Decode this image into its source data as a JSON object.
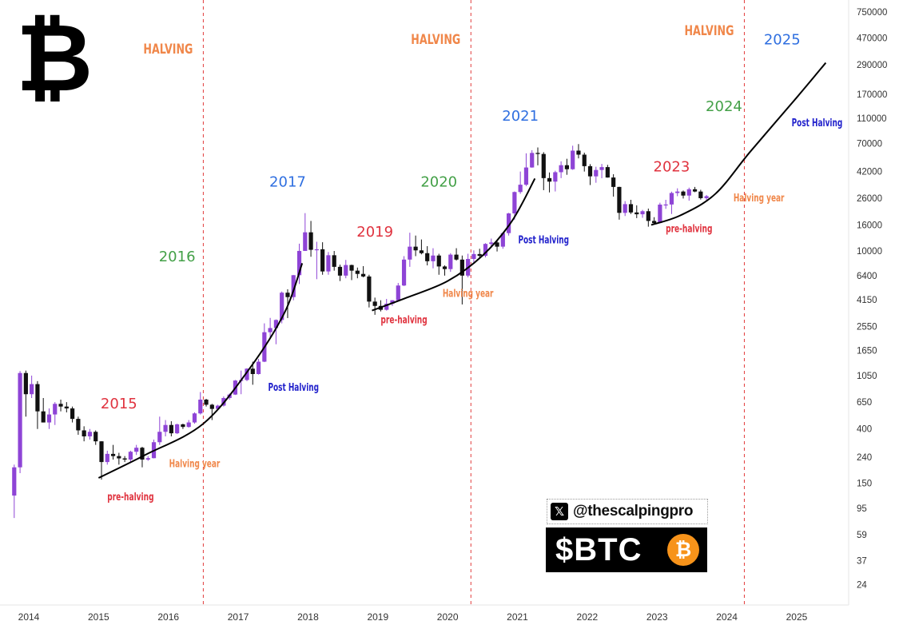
{
  "logo": {
    "icon": "bitcoin-logo",
    "glyph": "₿"
  },
  "colors": {
    "bull": "#8e44d6",
    "bear": "#111111",
    "halving_line": "#e23b3b",
    "halving_label": "#f0874a",
    "year_blue": "#2f6fe0",
    "year_green": "#43a047",
    "year_red": "#e0333f",
    "post_halving": "#2222cc",
    "pre_halving": "#e0333f",
    "halving_year": "#f0874a",
    "btc_orange": "#f7931a"
  },
  "handle": {
    "icon": "x-logo-icon",
    "glyph": "𝕏",
    "text": "@thescalpingpro"
  },
  "ticker": {
    "text": "$BTC",
    "coin_glyph": "₿"
  },
  "chart_data": {
    "type": "candlestick",
    "title": "",
    "xlabel": "",
    "ylabel": "",
    "y_scale": "log",
    "ylim": [
      18,
      1000000
    ],
    "xlim": [
      "2013-10",
      "2025-10"
    ],
    "grid": false,
    "x_ticks": [
      "2014",
      "2015",
      "2016",
      "2017",
      "2018",
      "2019",
      "2020",
      "2021",
      "2022",
      "2023",
      "2024",
      "2025"
    ],
    "y_ticks": [
      750000,
      470000,
      290000,
      170000,
      110000,
      70000,
      42000,
      26000,
      16000,
      10000,
      6400,
      4150,
      2550,
      1650,
      1050,
      650,
      400,
      240,
      150,
      95,
      59,
      37,
      24
    ],
    "halving_dates": [
      "2016-07",
      "2020-05",
      "2024-04"
    ],
    "halving_labels": [
      "HALVING",
      "HALVING",
      "HALVING"
    ],
    "year_labels": [
      {
        "text": "2015",
        "x": "2015-04",
        "y": 580,
        "color": "year_red"
      },
      {
        "text": "2016",
        "x": "2016-02",
        "y": 8300,
        "color": "year_green"
      },
      {
        "text": "2017",
        "x": "2017-09",
        "y": 32000,
        "color": "year_blue"
      },
      {
        "text": "2019",
        "x": "2018-12",
        "y": 13000,
        "color": "year_red"
      },
      {
        "text": "2020",
        "x": "2019-11",
        "y": 32000,
        "color": "year_green"
      },
      {
        "text": "2021",
        "x": "2021-01",
        "y": 105000,
        "color": "year_blue"
      },
      {
        "text": "2023",
        "x": "2023-03",
        "y": 42000,
        "color": "year_red"
      },
      {
        "text": "2024",
        "x": "2023-12",
        "y": 125000,
        "color": "year_green"
      },
      {
        "text": "2025",
        "x": "2024-10",
        "y": 420000,
        "color": "year_blue"
      }
    ],
    "phase_labels": [
      {
        "text": "pre-halving",
        "x": "2015-06",
        "y": 110,
        "color": "pre_halving"
      },
      {
        "text": "Halving year",
        "x": "2016-05",
        "y": 200,
        "color": "halving_year"
      },
      {
        "text": "Post Halving",
        "x": "2017-10",
        "y": 800,
        "color": "post_halving"
      },
      {
        "text": "pre-halving",
        "x": "2019-05",
        "y": 2700,
        "color": "pre_halving"
      },
      {
        "text": "Halving year",
        "x": "2020-04",
        "y": 4350,
        "color": "halving_year"
      },
      {
        "text": "Post Halving",
        "x": "2021-05",
        "y": 11500,
        "color": "post_halving"
      },
      {
        "text": "pre-halving",
        "x": "2023-06",
        "y": 14000,
        "color": "pre_halving"
      },
      {
        "text": "Halving year",
        "x": "2024-06",
        "y": 24500,
        "color": "halving_year"
      },
      {
        "text": "Post Halving",
        "x": "2025-04",
        "y": 95000,
        "color": "post_halving"
      }
    ],
    "trend_curves": [
      {
        "points": [
          [
            "2015-01",
            165
          ],
          [
            "2015-09",
            250
          ],
          [
            "2016-07",
            440
          ],
          [
            "2017-03",
            1200
          ],
          [
            "2017-09",
            3300
          ],
          [
            "2017-12",
            8000
          ]
        ]
      },
      {
        "points": [
          [
            "2018-12",
            3400
          ],
          [
            "2019-06",
            4300
          ],
          [
            "2020-01",
            5800
          ],
          [
            "2020-07",
            9200
          ],
          [
            "2020-12",
            17000
          ],
          [
            "2021-04",
            37000
          ]
        ]
      },
      {
        "points": [
          [
            "2022-12",
            16000
          ],
          [
            "2023-05",
            19000
          ],
          [
            "2023-11",
            28000
          ],
          [
            "2024-05",
            60000
          ],
          [
            "2025-01",
            160000
          ],
          [
            "2025-06",
            300000
          ]
        ]
      }
    ],
    "series": [
      {
        "ohlc": [
          [
            "2013-10",
            120,
            210,
            80,
            200
          ],
          [
            "2013-11",
            200,
            1140,
            180,
            1100
          ],
          [
            "2013-12",
            1100,
            1150,
            500,
            750
          ],
          [
            "2014-01",
            750,
            1050,
            700,
            900
          ],
          [
            "2014-02",
            900,
            950,
            400,
            550
          ],
          [
            "2014-03",
            550,
            700,
            450,
            450
          ],
          [
            "2014-04",
            450,
            580,
            400,
            520
          ],
          [
            "2014-05",
            520,
            650,
            430,
            630
          ],
          [
            "2014-06",
            630,
            680,
            550,
            600
          ],
          [
            "2014-07",
            600,
            650,
            540,
            580
          ],
          [
            "2014-08",
            580,
            600,
            450,
            480
          ],
          [
            "2014-09",
            480,
            500,
            360,
            390
          ],
          [
            "2014-10",
            390,
            420,
            320,
            350
          ],
          [
            "2014-11",
            350,
            400,
            330,
            380
          ],
          [
            "2014-12",
            380,
            390,
            300,
            320
          ],
          [
            "2015-01",
            320,
            320,
            160,
            220
          ],
          [
            "2015-02",
            220,
            270,
            210,
            255
          ],
          [
            "2015-03",
            255,
            300,
            230,
            245
          ],
          [
            "2015-04",
            245,
            260,
            210,
            235
          ],
          [
            "2015-05",
            235,
            245,
            220,
            230
          ],
          [
            "2015-06",
            230,
            270,
            220,
            265
          ],
          [
            "2015-07",
            265,
            300,
            250,
            285
          ],
          [
            "2015-08",
            285,
            290,
            200,
            230
          ],
          [
            "2015-09",
            230,
            245,
            225,
            236
          ],
          [
            "2015-10",
            236,
            330,
            235,
            315
          ],
          [
            "2015-11",
            315,
            500,
            300,
            380
          ],
          [
            "2015-12",
            380,
            470,
            350,
            430
          ],
          [
            "2016-01",
            430,
            460,
            350,
            370
          ],
          [
            "2016-02",
            370,
            440,
            365,
            435
          ],
          [
            "2016-03",
            435,
            440,
            400,
            415
          ],
          [
            "2016-04",
            415,
            470,
            410,
            450
          ],
          [
            "2016-05",
            450,
            540,
            440,
            530
          ],
          [
            "2016-06",
            530,
            780,
            520,
            680
          ],
          [
            "2016-07",
            680,
            690,
            600,
            620
          ],
          [
            "2016-08",
            620,
            630,
            470,
            575
          ],
          [
            "2016-09",
            575,
            620,
            570,
            610
          ],
          [
            "2016-10",
            610,
            720,
            600,
            700
          ],
          [
            "2016-11",
            700,
            760,
            680,
            745
          ],
          [
            "2016-12",
            745,
            970,
            740,
            960
          ],
          [
            "2017-01",
            960,
            1150,
            750,
            970
          ],
          [
            "2017-02",
            970,
            1200,
            950,
            1190
          ],
          [
            "2017-03",
            1190,
            1350,
            890,
            1080
          ],
          [
            "2017-04",
            1080,
            1420,
            1070,
            1350
          ],
          [
            "2017-05",
            1350,
            2700,
            1340,
            2300
          ],
          [
            "2017-06",
            2300,
            2980,
            2100,
            2480
          ],
          [
            "2017-07",
            2480,
            2900,
            1850,
            2870
          ],
          [
            "2017-08",
            2870,
            4800,
            2700,
            4700
          ],
          [
            "2017-09",
            4700,
            5000,
            2970,
            4340
          ],
          [
            "2017-10",
            4340,
            6470,
            4100,
            6450
          ],
          [
            "2017-11",
            6450,
            11400,
            5500,
            10000
          ],
          [
            "2017-12",
            10000,
            19800,
            10000,
            14000
          ],
          [
            "2018-01",
            14000,
            17200,
            9000,
            10200
          ],
          [
            "2018-02",
            10200,
            11800,
            6000,
            10300
          ],
          [
            "2018-03",
            10300,
            11700,
            6500,
            6900
          ],
          [
            "2018-04",
            6900,
            9800,
            6500,
            9250
          ],
          [
            "2018-05",
            9250,
            9990,
            7000,
            7500
          ],
          [
            "2018-06",
            7500,
            7800,
            5800,
            6400
          ],
          [
            "2018-07",
            6400,
            8500,
            6100,
            7750
          ],
          [
            "2018-08",
            7750,
            7800,
            5900,
            7000
          ],
          [
            "2018-09",
            7000,
            7400,
            6100,
            6600
          ],
          [
            "2018-10",
            6600,
            7600,
            6200,
            6300
          ],
          [
            "2018-11",
            6300,
            6500,
            3600,
            4000
          ],
          [
            "2018-12",
            4000,
            4300,
            3150,
            3700
          ],
          [
            "2019-01",
            3700,
            4100,
            3350,
            3450
          ],
          [
            "2019-02",
            3450,
            4200,
            3400,
            3850
          ],
          [
            "2019-03",
            3850,
            4100,
            3700,
            4100
          ],
          [
            "2019-04",
            4100,
            5600,
            4070,
            5350
          ],
          [
            "2019-05",
            5350,
            9100,
            5300,
            8550
          ],
          [
            "2019-06",
            8550,
            13900,
            7500,
            10800
          ],
          [
            "2019-07",
            10800,
            13200,
            9100,
            10100
          ],
          [
            "2019-08",
            10100,
            12300,
            9400,
            9600
          ],
          [
            "2019-09",
            9600,
            10900,
            7700,
            8300
          ],
          [
            "2019-10",
            8300,
            10500,
            7300,
            9200
          ],
          [
            "2019-11",
            9200,
            9500,
            6500,
            7550
          ],
          [
            "2019-12",
            7550,
            7700,
            6400,
            7200
          ],
          [
            "2020-01",
            7200,
            9600,
            6850,
            9350
          ],
          [
            "2020-02",
            9350,
            10500,
            8400,
            8550
          ],
          [
            "2020-03",
            8550,
            9200,
            3800,
            6400
          ],
          [
            "2020-04",
            6400,
            9500,
            6200,
            8650
          ],
          [
            "2020-05",
            8650,
            10100,
            8100,
            9450
          ],
          [
            "2020-06",
            9450,
            10400,
            8900,
            9150
          ],
          [
            "2020-07",
            9150,
            11500,
            8900,
            11350
          ],
          [
            "2020-08",
            11350,
            12500,
            10600,
            11650
          ],
          [
            "2020-09",
            11650,
            12100,
            9900,
            10800
          ],
          [
            "2020-10",
            10800,
            14100,
            10400,
            13800
          ],
          [
            "2020-11",
            13800,
            19900,
            13200,
            19700
          ],
          [
            "2020-12",
            19700,
            29300,
            17600,
            29000
          ],
          [
            "2021-01",
            29000,
            42000,
            28100,
            33100
          ],
          [
            "2021-02",
            33100,
            58400,
            32300,
            45200
          ],
          [
            "2021-03",
            45200,
            61800,
            45000,
            58800
          ],
          [
            "2021-04",
            58800,
            64900,
            47000,
            57700
          ],
          [
            "2021-05",
            57700,
            59600,
            30000,
            37300
          ],
          [
            "2021-06",
            37300,
            41300,
            28800,
            35000
          ],
          [
            "2021-07",
            35000,
            42600,
            29300,
            41500
          ],
          [
            "2021-08",
            41500,
            50500,
            37300,
            47100
          ],
          [
            "2021-09",
            47100,
            52900,
            39600,
            43800
          ],
          [
            "2021-10",
            43800,
            67000,
            43300,
            61300
          ],
          [
            "2021-11",
            61300,
            69000,
            53300,
            57000
          ],
          [
            "2021-12",
            57000,
            59100,
            42000,
            46300
          ],
          [
            "2022-01",
            46300,
            48000,
            32900,
            38500
          ],
          [
            "2022-02",
            38500,
            45800,
            34300,
            43200
          ],
          [
            "2022-03",
            43200,
            48200,
            37200,
            45500
          ],
          [
            "2022-04",
            45500,
            47400,
            37600,
            37700
          ],
          [
            "2022-05",
            37700,
            40000,
            26700,
            31800
          ],
          [
            "2022-06",
            31800,
            31900,
            17600,
            19900
          ],
          [
            "2022-07",
            19900,
            24600,
            18800,
            23300
          ],
          [
            "2022-08",
            23300,
            25200,
            19500,
            20050
          ],
          [
            "2022-09",
            20050,
            22800,
            18100,
            19400
          ],
          [
            "2022-10",
            19400,
            21000,
            18200,
            20500
          ],
          [
            "2022-11",
            20500,
            21500,
            15500,
            17200
          ],
          [
            "2022-12",
            17200,
            18400,
            16300,
            16550
          ],
          [
            "2023-01",
            16550,
            23900,
            16500,
            23100
          ],
          [
            "2023-02",
            23100,
            25200,
            21400,
            23150
          ],
          [
            "2023-03",
            23150,
            29200,
            19500,
            28500
          ],
          [
            "2023-04",
            28500,
            31000,
            26900,
            29250
          ],
          [
            "2023-05",
            29250,
            29800,
            25800,
            27200
          ],
          [
            "2023-06",
            27200,
            31400,
            24800,
            30500
          ],
          [
            "2023-07",
            30500,
            31800,
            28900,
            29250
          ],
          [
            "2023-08",
            29250,
            30200,
            25300,
            25950
          ],
          [
            "2023-09",
            25950,
            27500,
            24900,
            26900
          ]
        ]
      }
    ]
  }
}
